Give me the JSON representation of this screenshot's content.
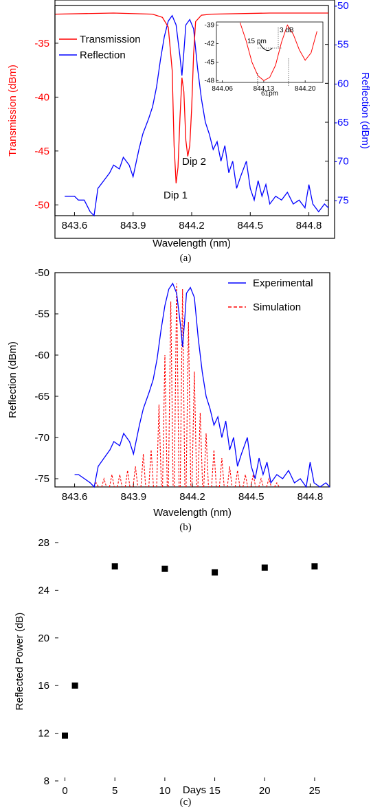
{
  "colors": {
    "transmission": "#ff0000",
    "reflection": "#0000ff",
    "simulation": "#ff0000",
    "marker": "#000000"
  },
  "chart_data": [
    {
      "id": "a",
      "type": "line",
      "caption": "(a)",
      "xlabel": "Wavelength (nm)",
      "ylabel_left": "Transmission (dBm)",
      "ylabel_right": "Reflection (dBm)",
      "xlim": [
        843.5,
        844.9
      ],
      "ylim_left": [
        -51,
        -31.5
      ],
      "ylim_right": [
        -77,
        -50
      ],
      "x_ticks": [
        843.6,
        843.9,
        844.2,
        844.5,
        844.8
      ],
      "x_tick_labels": [
        "843.6",
        "843.9",
        "844.2",
        "844.5",
        "844.8"
      ],
      "y_left_ticks": [
        -35,
        -40,
        -45,
        -50
      ],
      "y_left_tick_labels": [
        "-35",
        "-40",
        "-45",
        "-50"
      ],
      "y_right_ticks": [
        -50,
        -55,
        -60,
        -65,
        -70,
        -75
      ],
      "y_right_tick_labels": [
        "-50",
        "-55",
        "-60",
        "-65",
        "-70",
        "-75"
      ],
      "legend_position": "top-left",
      "annotations": [
        "Dip 1",
        "Dip 2"
      ],
      "series": [
        {
          "name": "Transmission",
          "axis": "left",
          "x": [
            843.5,
            843.8,
            844.0,
            844.05,
            844.08,
            844.1,
            844.11,
            844.12,
            844.13,
            844.14,
            844.15,
            844.16,
            844.17,
            844.18,
            844.19,
            844.2,
            844.21,
            844.22,
            844.25,
            844.3,
            844.6,
            844.9
          ],
          "y": [
            -32.3,
            -32.2,
            -32.3,
            -32.6,
            -33.5,
            -37.5,
            -44.5,
            -48.0,
            -46.5,
            -42.0,
            -38.2,
            -39.5,
            -44.0,
            -45.5,
            -44.5,
            -41.0,
            -36.0,
            -33.0,
            -32.4,
            -32.3,
            -32.2,
            -32.2
          ]
        },
        {
          "name": "Reflection",
          "axis": "right",
          "x": [
            843.55,
            843.6,
            843.62,
            843.65,
            843.68,
            843.7,
            843.72,
            843.75,
            843.78,
            843.8,
            843.83,
            843.85,
            843.88,
            843.9,
            843.93,
            843.95,
            843.98,
            844.0,
            844.02,
            844.04,
            844.06,
            844.08,
            844.1,
            844.12,
            844.14,
            844.15,
            844.16,
            844.17,
            844.19,
            844.21,
            844.23,
            844.25,
            844.27,
            844.29,
            844.31,
            844.33,
            844.35,
            844.37,
            844.39,
            844.41,
            844.43,
            844.45,
            844.48,
            844.5,
            844.52,
            844.54,
            844.56,
            844.58,
            844.6,
            844.63,
            844.66,
            844.69,
            844.72,
            844.75,
            844.78,
            844.8,
            844.82,
            844.85,
            844.88,
            844.9
          ],
          "y": [
            -74.5,
            -74.5,
            -75.0,
            -75.0,
            -76.5,
            -77.0,
            -73.5,
            -72.5,
            -71.5,
            -70.5,
            -71.0,
            -69.5,
            -70.5,
            -72.0,
            -68.5,
            -66.5,
            -64.5,
            -63.0,
            -60.5,
            -57.0,
            -54.0,
            -52.0,
            -51.3,
            -52.5,
            -56.5,
            -59.0,
            -56.0,
            -52.5,
            -51.8,
            -53.0,
            -58.0,
            -62.0,
            -65.0,
            -66.5,
            -68.5,
            -67.5,
            -70.0,
            -68.0,
            -71.5,
            -70.0,
            -73.5,
            -72.0,
            -70.0,
            -73.5,
            -75.0,
            -72.5,
            -74.5,
            -73.0,
            -75.5,
            -74.5,
            -75.0,
            -74.0,
            -75.5,
            -75.0,
            -76.0,
            -73.0,
            -75.5,
            -76.5,
            -75.5,
            -76.0
          ]
        }
      ],
      "inset": {
        "xlim": [
          844.05,
          844.23
        ],
        "ylim": [
          -48.3,
          -38.5
        ],
        "x_ticks": [
          844.06,
          844.13,
          844.2
        ],
        "x_tick_labels": [
          "844.06",
          "844.13",
          "844.20"
        ],
        "y_ticks": [
          -39,
          -42,
          -45,
          -48
        ],
        "y_tick_labels": [
          "-39",
          "-42",
          "-45",
          "-48"
        ],
        "annotations": [
          "15 pm",
          "3 dB",
          "61pm"
        ],
        "x": [
          844.09,
          844.1,
          844.11,
          844.12,
          844.13,
          844.14,
          844.15,
          844.16,
          844.17,
          844.18,
          844.19,
          844.2,
          844.21,
          844.22
        ],
        "y": [
          -38.6,
          -41.5,
          -45.0,
          -47.2,
          -48.0,
          -47.5,
          -45.5,
          -41.8,
          -39.0,
          -40.5,
          -43.0,
          -44.7,
          -43.5,
          -40.0
        ]
      }
    },
    {
      "id": "b",
      "type": "line",
      "caption": "(b)",
      "xlabel": "Wavelength (nm)",
      "ylabel": "Reflection (dBm)",
      "xlim": [
        843.5,
        844.9
      ],
      "ylim": [
        -76,
        -50
      ],
      "x_ticks": [
        843.6,
        843.9,
        844.2,
        844.5,
        844.8
      ],
      "x_tick_labels": [
        "843.6",
        "843.9",
        "844.2",
        "844.5",
        "844.8"
      ],
      "y_ticks": [
        -50,
        -55,
        -60,
        -65,
        -70,
        -75
      ],
      "y_tick_labels": [
        "-50",
        "-55",
        "-60",
        "-65",
        "-70",
        "-75"
      ],
      "legend_position": "top-right",
      "series": [
        {
          "name": "Experimental",
          "style": "solid",
          "x": [
            843.6,
            843.62,
            843.65,
            843.68,
            843.7,
            843.72,
            843.75,
            843.78,
            843.8,
            843.83,
            843.85,
            843.88,
            843.9,
            843.93,
            843.95,
            843.98,
            844.0,
            844.02,
            844.04,
            844.06,
            844.08,
            844.1,
            844.12,
            844.14,
            844.15,
            844.16,
            844.17,
            844.19,
            844.21,
            844.23,
            844.25,
            844.27,
            844.29,
            844.31,
            844.33,
            844.35,
            844.37,
            844.39,
            844.41,
            844.43,
            844.45,
            844.48,
            844.5,
            844.52,
            844.54,
            844.56,
            844.58,
            844.6,
            844.63,
            844.66,
            844.69,
            844.72,
            844.75,
            844.78,
            844.8,
            844.82,
            844.85,
            844.88,
            844.9
          ],
          "y": [
            -74.5,
            -74.5,
            -75.0,
            -75.5,
            -76.0,
            -73.5,
            -72.5,
            -71.5,
            -70.5,
            -71.0,
            -69.5,
            -70.5,
            -72.0,
            -68.5,
            -66.5,
            -64.5,
            -63.0,
            -60.5,
            -57.0,
            -54.0,
            -52.0,
            -51.3,
            -52.5,
            -56.5,
            -59.0,
            -56.0,
            -52.5,
            -51.8,
            -53.0,
            -58.0,
            -62.0,
            -65.0,
            -66.5,
            -68.5,
            -67.5,
            -70.0,
            -68.0,
            -71.5,
            -70.0,
            -73.5,
            -72.0,
            -70.0,
            -73.5,
            -75.0,
            -72.5,
            -74.5,
            -73.0,
            -75.5,
            -74.5,
            -75.0,
            -74.0,
            -75.5,
            -75.0,
            -76.0,
            -73.0,
            -75.5,
            -76.0,
            -75.5,
            -76.0
          ]
        },
        {
          "name": "Simulation",
          "style": "dashed",
          "peaks_x": [
            843.71,
            843.75,
            843.79,
            843.83,
            843.87,
            843.91,
            843.95,
            843.99,
            844.03,
            844.06,
            844.09,
            844.12,
            844.15,
            844.18,
            844.21,
            844.24,
            844.27,
            844.31,
            844.35,
            844.39,
            844.43,
            844.47,
            844.51,
            844.55,
            844.59,
            844.63
          ],
          "peaks_y": [
            -75.5,
            -75.0,
            -74.5,
            -74.5,
            -74.0,
            -73.5,
            -72.0,
            -71.5,
            -66.0,
            -60.0,
            -53.5,
            -51.3,
            -52.0,
            -56.0,
            -62.0,
            -67.0,
            -69.5,
            -71.5,
            -72.5,
            -73.5,
            -74.0,
            -74.5,
            -74.5,
            -75.0,
            -75.0,
            -75.5
          ],
          "y_floor": -76
        }
      ]
    },
    {
      "id": "c",
      "type": "scatter",
      "caption": "(c)",
      "xlabel": "Days",
      "ylabel": "Reflected Power (dB)",
      "xlim": [
        -1,
        27
      ],
      "ylim": [
        8,
        28
      ],
      "x_ticks": [
        0,
        5,
        10,
        15,
        20,
        25
      ],
      "x_tick_labels": [
        "0",
        "5",
        "10",
        "15",
        "20",
        "25"
      ],
      "y_ticks": [
        8,
        12,
        16,
        20,
        24,
        28
      ],
      "y_tick_labels": [
        "8",
        "12",
        "16",
        "20",
        "24",
        "28"
      ],
      "series": [
        {
          "x": [
            0,
            1,
            5,
            10,
            15,
            20,
            25
          ],
          "y": [
            11.8,
            16.0,
            26.0,
            25.8,
            25.5,
            25.9,
            26.0
          ]
        }
      ]
    }
  ]
}
